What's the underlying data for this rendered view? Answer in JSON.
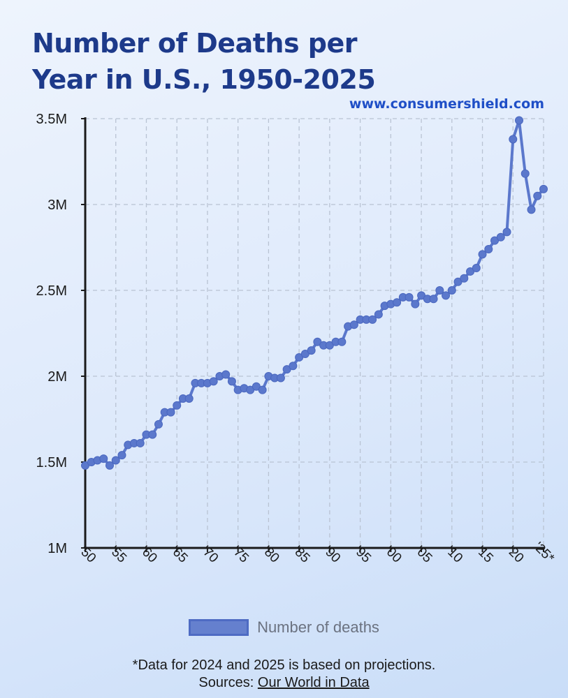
{
  "header": {
    "title": "Number of Deaths per Year in U.S., 1950-2025",
    "source_url": "www.consumershield.com"
  },
  "legend": {
    "label": "Number of deaths",
    "color": "#5b78cc"
  },
  "footer": {
    "note": "*Data for 2024 and 2025 is based on projections.",
    "sources_prefix": "Sources: ",
    "sources_link": "Our World in Data"
  },
  "chart_data": {
    "type": "line",
    "title": "Number of Deaths per Year in U.S., 1950-2025",
    "xlabel": "",
    "ylabel": "",
    "x_range": [
      1950,
      2025
    ],
    "ylim": [
      1000000,
      3500000
    ],
    "y_ticks": [
      {
        "value": 1000000,
        "label": "1M"
      },
      {
        "value": 1500000,
        "label": "1.5M"
      },
      {
        "value": 2000000,
        "label": "2M"
      },
      {
        "value": 2500000,
        "label": "2.5M"
      },
      {
        "value": 3000000,
        "label": "3M"
      },
      {
        "value": 3500000,
        "label": "3.5M"
      }
    ],
    "x_ticks": [
      {
        "value": 1950,
        "label": "'50"
      },
      {
        "value": 1955,
        "label": "'55"
      },
      {
        "value": 1960,
        "label": "'60"
      },
      {
        "value": 1965,
        "label": "'65"
      },
      {
        "value": 1970,
        "label": "'70"
      },
      {
        "value": 1975,
        "label": "'75"
      },
      {
        "value": 1980,
        "label": "'80"
      },
      {
        "value": 1985,
        "label": "'85"
      },
      {
        "value": 1990,
        "label": "'90"
      },
      {
        "value": 1995,
        "label": "'95"
      },
      {
        "value": 2000,
        "label": "'00"
      },
      {
        "value": 2005,
        "label": "'05"
      },
      {
        "value": 2010,
        "label": "'10"
      },
      {
        "value": 2015,
        "label": "'15"
      },
      {
        "value": 2020,
        "label": "'20"
      },
      {
        "value": 2025,
        "label": "'25*"
      }
    ],
    "grid": true,
    "legend_position": "bottom",
    "series": [
      {
        "name": "Number of deaths",
        "x": [
          1950,
          1951,
          1952,
          1953,
          1954,
          1955,
          1956,
          1957,
          1958,
          1959,
          1960,
          1961,
          1962,
          1963,
          1964,
          1965,
          1966,
          1967,
          1968,
          1969,
          1970,
          1971,
          1972,
          1973,
          1974,
          1975,
          1976,
          1977,
          1978,
          1979,
          1980,
          1981,
          1982,
          1983,
          1984,
          1985,
          1986,
          1987,
          1988,
          1989,
          1990,
          1991,
          1992,
          1993,
          1994,
          1995,
          1996,
          1997,
          1998,
          1999,
          2000,
          2001,
          2002,
          2003,
          2004,
          2005,
          2006,
          2007,
          2008,
          2009,
          2010,
          2011,
          2012,
          2013,
          2014,
          2015,
          2016,
          2017,
          2018,
          2019,
          2020,
          2021,
          2022,
          2023,
          2024,
          2025
        ],
        "values": [
          1480000,
          1500000,
          1510000,
          1520000,
          1480000,
          1510000,
          1540000,
          1600000,
          1610000,
          1610000,
          1660000,
          1660000,
          1720000,
          1790000,
          1790000,
          1830000,
          1870000,
          1870000,
          1960000,
          1960000,
          1960000,
          1970000,
          2000000,
          2010000,
          1970000,
          1920000,
          1930000,
          1920000,
          1940000,
          1920000,
          2000000,
          1990000,
          1990000,
          2040000,
          2060000,
          2110000,
          2130000,
          2150000,
          2200000,
          2180000,
          2180000,
          2200000,
          2200000,
          2290000,
          2300000,
          2330000,
          2330000,
          2330000,
          2360000,
          2410000,
          2420000,
          2430000,
          2460000,
          2460000,
          2420000,
          2470000,
          2450000,
          2450000,
          2500000,
          2470000,
          2500000,
          2550000,
          2570000,
          2610000,
          2630000,
          2710000,
          2740000,
          2790000,
          2810000,
          2840000,
          3380000,
          3490000,
          3180000,
          2970000,
          3050000,
          3090000
        ]
      }
    ]
  }
}
